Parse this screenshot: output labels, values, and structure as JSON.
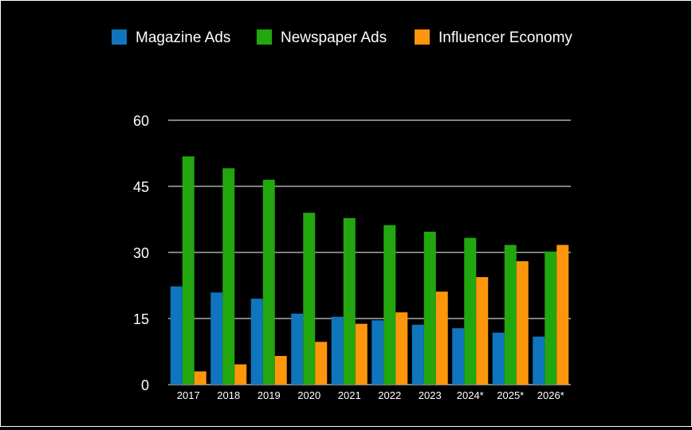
{
  "chart_data": {
    "type": "bar",
    "title": "",
    "xlabel": "",
    "ylabel": "",
    "categories": [
      "2017",
      "2018",
      "2019",
      "2020",
      "2021",
      "2022",
      "2023",
      "2024*",
      "2025*",
      "2026*"
    ],
    "series": [
      {
        "name": "Magazine Ads",
        "color": "#0f75bc",
        "values": [
          22.3,
          20.9,
          19.5,
          16.1,
          15.4,
          14.6,
          13.6,
          12.8,
          11.8,
          10.9
        ]
      },
      {
        "name": "Newspaper Ads",
        "color": "#22a70f",
        "values": [
          51.8,
          49.1,
          46.5,
          39.0,
          37.8,
          36.2,
          34.7,
          33.3,
          31.7,
          30.2
        ]
      },
      {
        "name": "Influencer Economy",
        "color": "#fe960c",
        "values": [
          3.0,
          4.6,
          6.5,
          9.7,
          13.8,
          16.4,
          21.1,
          24.4,
          28.0,
          31.7
        ]
      }
    ],
    "ylim": [
      0,
      60
    ],
    "yticks": [
      "0",
      "15",
      "30",
      "45",
      "60"
    ],
    "grid": true,
    "legend": "top-center",
    "background": "#000000",
    "text_color": "#ffffff"
  }
}
